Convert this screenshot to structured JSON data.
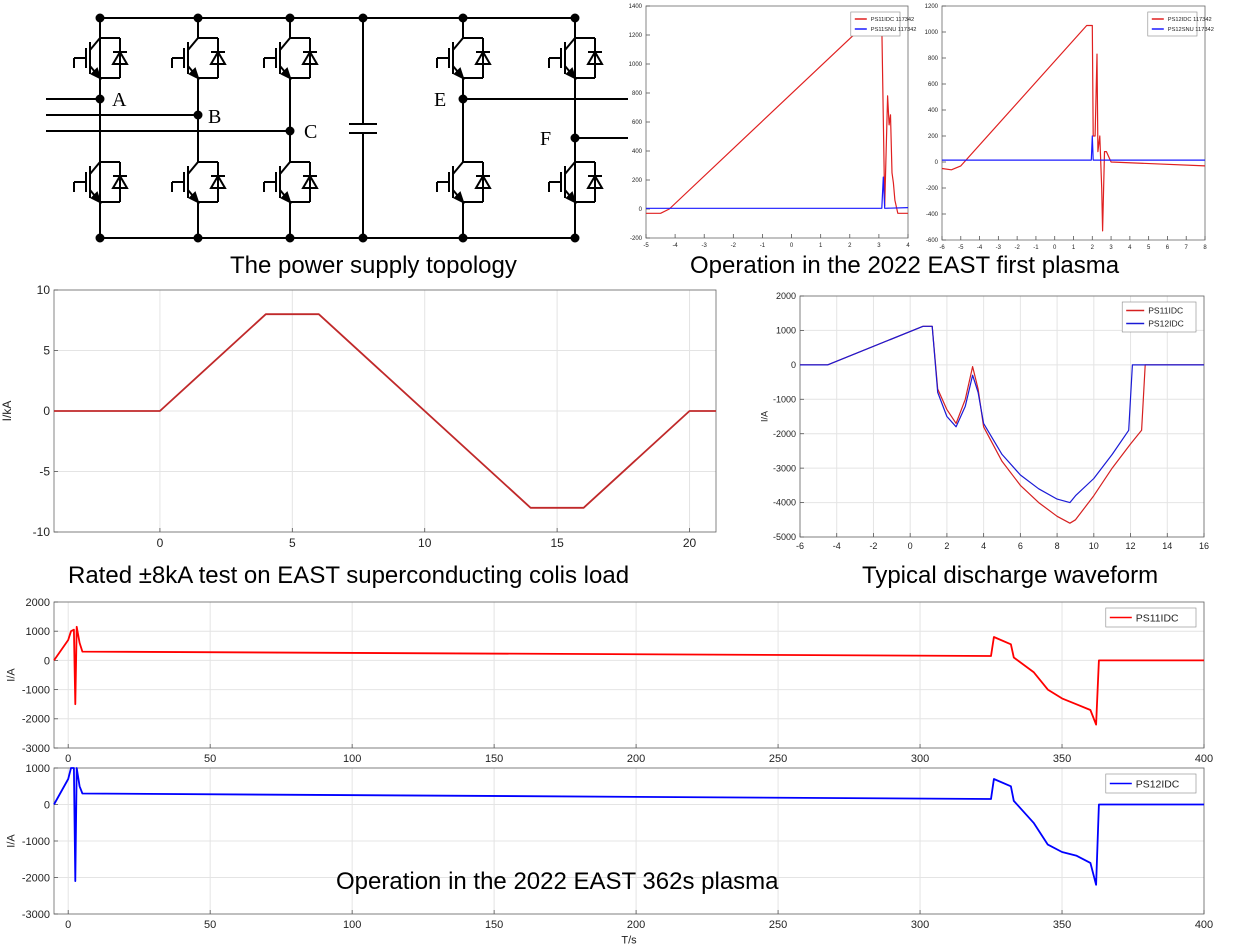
{
  "topology": {
    "caption": "The power supply topology",
    "node_labels": [
      "A",
      "B",
      "C",
      "E",
      "F"
    ]
  },
  "captions": {
    "first_plasma": "Operation in the 2022 EAST first plasma",
    "rated_test": "Rated ±8kA test on EAST superconducting colis load",
    "typical": "Typical discharge waveform",
    "long_plasma": "Operation in the 2022 EAST 362s plasma"
  },
  "chart_data": [
    {
      "id": "first-plasma-1",
      "type": "line",
      "xlim": [
        -5,
        4
      ],
      "ylim": [
        -200,
        1400
      ],
      "xticks": [
        -5,
        -4,
        -3,
        -2,
        -1,
        0,
        1,
        2,
        3,
        4
      ],
      "yticks": [
        -200,
        0,
        200,
        400,
        600,
        800,
        1000,
        1200,
        1400
      ],
      "grid": false,
      "legend": "top-right",
      "series": [
        {
          "name": "PS11IDC  117342",
          "color": "#e02020",
          "x": [
            -5,
            -4.5,
            -4.2,
            2.5,
            3.1,
            3.2,
            3.3,
            3.35,
            3.4,
            3.45,
            3.5,
            3.55,
            3.65,
            3.8,
            4
          ],
          "y": [
            -30,
            -30,
            0,
            1270,
            1270,
            20,
            780,
            580,
            650,
            250,
            180,
            60,
            -30,
            -30,
            -30
          ]
        },
        {
          "name": "PS11SNU  117342",
          "color": "#1a1aff",
          "x": [
            -5,
            3.1,
            3.15,
            3.2,
            4
          ],
          "y": [
            5,
            5,
            220,
            5,
            10
          ]
        }
      ]
    },
    {
      "id": "first-plasma-2",
      "type": "line",
      "xlim": [
        -6,
        8
      ],
      "ylim": [
        -600,
        1200
      ],
      "xticks": [
        -6,
        -5,
        -4,
        -3,
        -2,
        -1,
        0,
        1,
        2,
        3,
        4,
        5,
        6,
        7,
        8
      ],
      "yticks": [
        -600,
        -400,
        -200,
        0,
        200,
        400,
        600,
        800,
        1000,
        1200
      ],
      "grid": false,
      "legend": "top-right",
      "series": [
        {
          "name": "PS12IDC  117342",
          "color": "#e02020",
          "x": [
            -6,
            -5.5,
            -5,
            1.7,
            2,
            2.05,
            2.15,
            2.25,
            2.3,
            2.4,
            2.5,
            2.55,
            2.65,
            2.75,
            3,
            8
          ],
          "y": [
            -50,
            -60,
            -30,
            1050,
            1050,
            200,
            200,
            830,
            80,
            200,
            -200,
            -530,
            80,
            80,
            0,
            -30
          ]
        },
        {
          "name": "PS12SNU  117342",
          "color": "#1a1aff",
          "x": [
            -6,
            1.95,
            2,
            2.05,
            8
          ],
          "y": [
            15,
            15,
            200,
            15,
            15
          ]
        }
      ]
    },
    {
      "id": "rated-test",
      "type": "line",
      "xlim": [
        -4,
        21
      ],
      "ylim": [
        -10,
        10
      ],
      "xticks": [
        0,
        5,
        10,
        15,
        20
      ],
      "yticks": [
        -10,
        -5,
        0,
        5,
        10
      ],
      "ylabel": "I/kA",
      "grid": true,
      "series": [
        {
          "color": "#c0292a",
          "x": [
            -4,
            0,
            4,
            6,
            14,
            16,
            20,
            21
          ],
          "y": [
            0,
            0,
            8,
            8,
            -8,
            -8,
            0,
            0
          ]
        }
      ]
    },
    {
      "id": "typical-discharge",
      "type": "line",
      "xlim": [
        -6,
        16
      ],
      "ylim": [
        -5000,
        2000
      ],
      "xticks": [
        -6,
        -4,
        -2,
        0,
        2,
        4,
        6,
        8,
        10,
        12,
        14,
        16
      ],
      "yticks": [
        -5000,
        -4000,
        -3000,
        -2000,
        -1000,
        0,
        1000,
        2000
      ],
      "ylabel": "I/A",
      "grid": true,
      "legend": "top-right",
      "series": [
        {
          "name": "PS11IDC",
          "color": "#d62020",
          "x": [
            -6,
            -4.5,
            0.7,
            1.2,
            1.5,
            2,
            2.5,
            3,
            3.4,
            3.7,
            4,
            5,
            6,
            7,
            8,
            8.7,
            9,
            10,
            11,
            12,
            12.6,
            12.8,
            13,
            16
          ],
          "y": [
            0,
            0,
            1120,
            1120,
            -700,
            -1300,
            -1700,
            -1000,
            -50,
            -700,
            -1800,
            -2800,
            -3500,
            -4000,
            -4400,
            -4600,
            -4500,
            -3800,
            -3000,
            -2300,
            -1900,
            0,
            0,
            0
          ]
        },
        {
          "name": "PS12IDC",
          "color": "#1a1ad6",
          "x": [
            -6,
            -4.5,
            0.7,
            1.2,
            1.5,
            2,
            2.5,
            3,
            3.4,
            3.7,
            4,
            5,
            6,
            7,
            8,
            8.7,
            9,
            10,
            11,
            11.9,
            12.1,
            12.3,
            16
          ],
          "y": [
            0,
            0,
            1120,
            1120,
            -800,
            -1500,
            -1800,
            -1200,
            -300,
            -800,
            -1700,
            -2600,
            -3200,
            -3600,
            -3900,
            -4000,
            -3800,
            -3300,
            -2600,
            -1900,
            0,
            0,
            0
          ]
        }
      ]
    },
    {
      "id": "long-plasma-1",
      "type": "line",
      "xlim": [
        -5,
        400
      ],
      "ylim": [
        -3000,
        2000
      ],
      "xticks": [
        0,
        50,
        100,
        150,
        200,
        250,
        300,
        350,
        400
      ],
      "yticks": [
        -3000,
        -2000,
        -1000,
        0,
        1000,
        2000
      ],
      "ylabel": "I/A",
      "grid": true,
      "legend": "top-right",
      "series": [
        {
          "name": "PS11IDC",
          "color": "#ff0000",
          "x": [
            -5,
            0,
            1,
            2,
            2.5,
            3,
            4,
            5,
            325,
            326,
            332,
            333,
            340,
            345,
            350,
            355,
            360,
            362,
            363,
            400
          ],
          "y": [
            0,
            700,
            1000,
            1050,
            -1500,
            1150,
            600,
            300,
            150,
            800,
            550,
            100,
            -400,
            -1000,
            -1300,
            -1500,
            -1700,
            -2200,
            0,
            0
          ]
        }
      ]
    },
    {
      "id": "long-plasma-2",
      "type": "line",
      "xlim": [
        -5,
        400
      ],
      "ylim": [
        -3000,
        1000
      ],
      "xticks": [
        0,
        50,
        100,
        150,
        200,
        250,
        300,
        350,
        400
      ],
      "yticks": [
        -3000,
        -2000,
        -1000,
        0,
        1000
      ],
      "ylabel": "I/A",
      "xlabel": "T/s",
      "grid": true,
      "legend": "top-right",
      "series": [
        {
          "name": "PS12IDC",
          "color": "#0000ff",
          "x": [
            -5,
            0,
            1,
            2,
            2.5,
            3,
            4,
            5,
            325,
            326,
            332,
            333,
            340,
            345,
            350,
            355,
            360,
            362,
            363,
            400
          ],
          "y": [
            0,
            700,
            1000,
            1000,
            -2100,
            1000,
            500,
            300,
            150,
            700,
            500,
            100,
            -500,
            -1100,
            -1300,
            -1400,
            -1600,
            -2200,
            0,
            0
          ]
        }
      ]
    }
  ]
}
